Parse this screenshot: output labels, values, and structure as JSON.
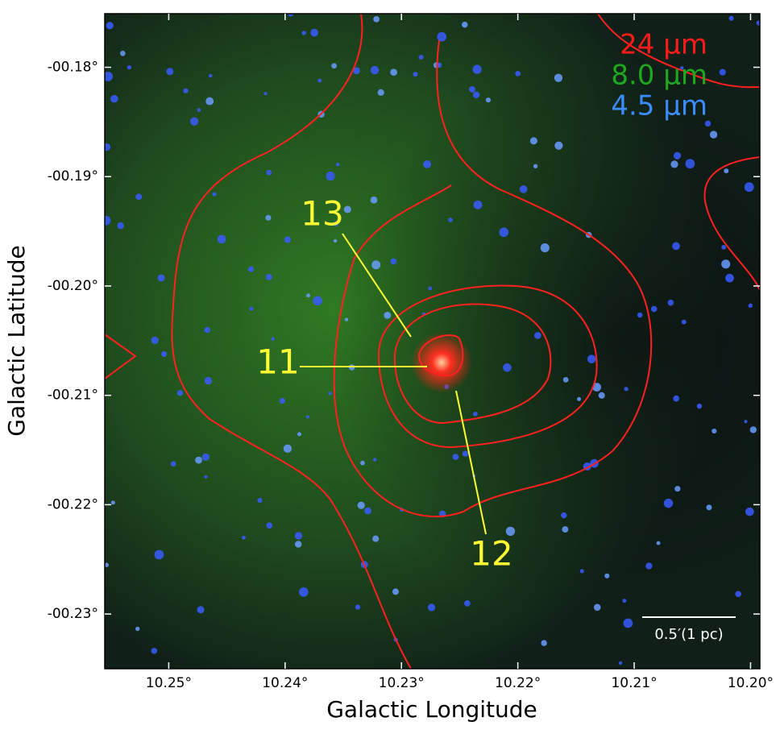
{
  "chart_data": {
    "type": "image",
    "xlabel": "Galactic Longitude",
    "ylabel": "Galactic Latitude",
    "xlim": [
      10.2555,
      10.1992
    ],
    "ylim": [
      -0.1751,
      -0.235
    ],
    "xticks": [
      {
        "value": 10.25,
        "label": "10.25°"
      },
      {
        "value": 10.24,
        "label": "10.24°"
      },
      {
        "value": 10.23,
        "label": "10.23°"
      },
      {
        "value": 10.22,
        "label": "10.22°"
      },
      {
        "value": 10.21,
        "label": "10.21°"
      },
      {
        "value": 10.2,
        "label": "10.20°"
      }
    ],
    "yticks": [
      {
        "value": -0.18,
        "label": "-00.18°"
      },
      {
        "value": -0.19,
        "label": "-00.19°"
      },
      {
        "value": -0.2,
        "label": "-00.20°"
      },
      {
        "value": -0.21,
        "label": "-00.21°"
      },
      {
        "value": -0.22,
        "label": "-00.22°"
      },
      {
        "value": -0.23,
        "label": "-00.23°"
      }
    ],
    "legend": [
      {
        "name": "24 μm",
        "color": "#ff1a1a"
      },
      {
        "name": "8.0 μm",
        "color": "#1fa81f"
      },
      {
        "name": "4.5 μm",
        "color": "#3a8cff"
      }
    ],
    "annotations": [
      "13",
      "11",
      "12"
    ],
    "scale_bar": "0.5′(1 pc)"
  }
}
